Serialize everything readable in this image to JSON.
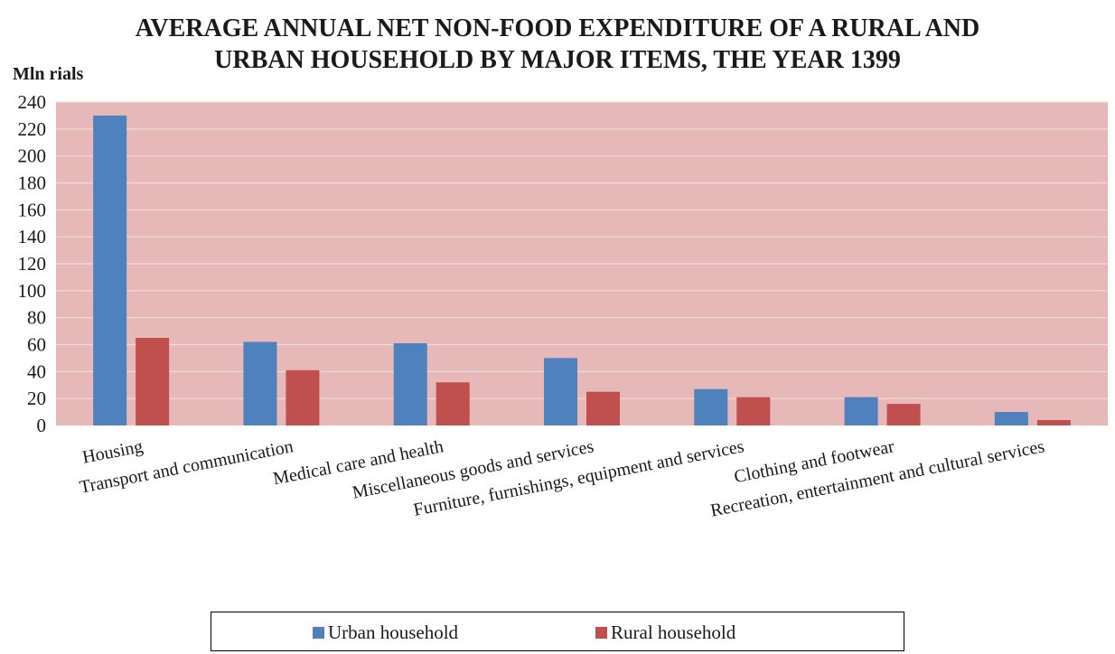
{
  "chart_data": {
    "type": "bar",
    "title_lines": [
      "AVERAGE ANNUAL NET NON-FOOD EXPENDITURE OF A RURAL AND",
      "URBAN HOUSEHOLD BY MAJOR ITEMS, THE YEAR 1399"
    ],
    "ylabel": "Mln rials",
    "ylim": [
      0,
      240
    ],
    "yticks": [
      0,
      20,
      40,
      60,
      80,
      100,
      120,
      140,
      160,
      180,
      200,
      220,
      240
    ],
    "grid": true,
    "legend_position": "bottom",
    "categories": [
      "Housing",
      "Transport and communication",
      "Medical care and health",
      "Miscellaneous goods and services",
      "Furniture, furnishings, equipment and services",
      "Clothing and footwear",
      "Recreation, entertainment and cultural services"
    ],
    "series": [
      {
        "name": "Urban household",
        "color": "#4f81bd",
        "values": [
          230,
          62,
          61,
          50,
          27,
          21,
          10
        ]
      },
      {
        "name": "Rural household",
        "color": "#c0504d",
        "values": [
          65,
          41,
          32,
          25,
          21,
          16,
          4
        ]
      }
    ],
    "plot_background": "#e6b8b8",
    "gridline_color": "#f2dcdb"
  }
}
